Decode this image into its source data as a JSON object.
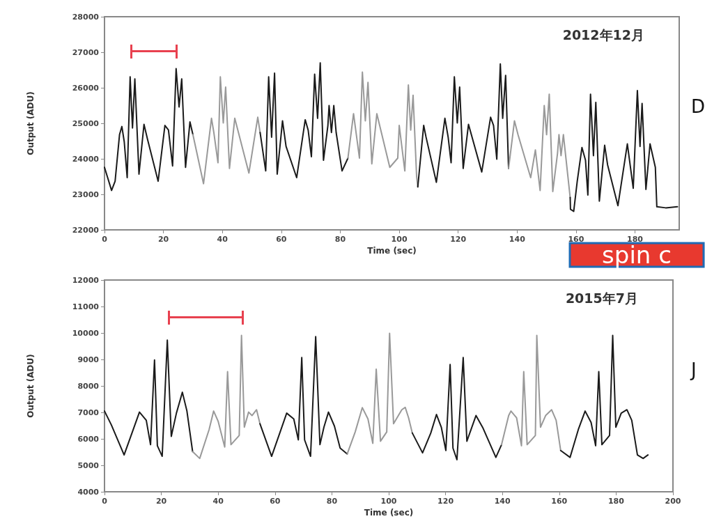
{
  "chart_data": [
    {
      "type": "line",
      "xlabel": "Time (sec)",
      "ylabel": "Output (ADU)",
      "xlim": [
        0,
        195
      ],
      "xticks": [
        0,
        20,
        40,
        60,
        80,
        100,
        120,
        140,
        160,
        180
      ],
      "ylim": [
        22000,
        28000
      ],
      "yticks": [
        22000,
        23000,
        24000,
        25000,
        26000,
        27000,
        28000
      ],
      "grid": false,
      "annotations": [
        "2012年12月",
        "D",
        "spin c"
      ],
      "series": [
        {
          "color": "#1a1a1a",
          "x": [
            0,
            2.4,
            3.6,
            5.1,
            5.9,
            6.7,
            7.7,
            8.7,
            9.5,
            10.3,
            11.7,
            13.4,
            14.6,
            18.2,
            20.5,
            21.7,
            23.1,
            24.3,
            25.3,
            26.2,
            27.5,
            29.0,
            30.0
          ],
          "values": [
            23760,
            23110,
            23370,
            24680,
            24910,
            24480,
            23470,
            26310,
            24870,
            26250,
            23570,
            24970,
            24550,
            23370,
            24940,
            24810,
            23800,
            26540,
            25460,
            26250,
            23760,
            25040,
            24680
          ]
        },
        {
          "color": "#999999",
          "x": [
            30.0,
            33.6,
            36.3,
            37.1,
            38.5,
            39.3,
            40.3,
            41.1,
            42.4,
            44.2,
            49.0,
            52.0,
            52.8
          ],
          "values": [
            24680,
            23300,
            25140,
            24740,
            23890,
            26310,
            25010,
            26020,
            23730,
            25140,
            23600,
            25170,
            24740
          ]
        },
        {
          "color": "#1a1a1a",
          "x": [
            52.8,
            54.7,
            55.7,
            56.7,
            57.7,
            58.6,
            60.4,
            61.6,
            65.2,
            68.1,
            69.1,
            70.2,
            71.3,
            72.3,
            73.2,
            74.3,
            75.8,
            76.2,
            77.0,
            77.8,
            78.6,
            80.6,
            82.6
          ],
          "values": [
            24740,
            23660,
            26310,
            24610,
            26410,
            23570,
            25070,
            24350,
            23470,
            25100,
            24810,
            24060,
            26380,
            25140,
            26700,
            23960,
            24940,
            25500,
            24740,
            25500,
            24740,
            23660,
            24020
          ]
        },
        {
          "color": "#999999",
          "x": [
            82.6,
            84.5,
            86.5,
            87.5,
            88.5,
            89.4,
            90.7,
            92.4,
            96.8,
            99.5,
            100.0,
            101.9,
            103.1,
            103.9,
            104.7,
            105.9,
            106.3
          ],
          "values": [
            24020,
            25270,
            24020,
            26440,
            25070,
            26150,
            23860,
            25270,
            23760,
            24020,
            24940,
            23660,
            26080,
            24810,
            25790,
            23500,
            23210
          ]
        },
        {
          "color": "#1a1a1a",
          "x": [
            106.3,
            108.3,
            109.1,
            112.6,
            115.5,
            116.6,
            117.6,
            118.7,
            119.7,
            120.5,
            121.7,
            123.5,
            128.0,
            131.0,
            132.0,
            133.1,
            134.3,
            135.1,
            136.1,
            137.1
          ],
          "values": [
            23210,
            24940,
            24610,
            23340,
            25140,
            24610,
            23890,
            26310,
            25010,
            26020,
            23730,
            24970,
            23630,
            25170,
            24940,
            23990,
            26670,
            25140,
            26350,
            23730
          ]
        },
        {
          "color": "#999999",
          "x": [
            137.1,
            139.1,
            140.3,
            144.6,
            146.2,
            147.8,
            149.2,
            150.0,
            150.9,
            152.1,
            153.7,
            154.2,
            154.9,
            155.7,
            158.0
          ],
          "values": [
            23730,
            25070,
            24680,
            23470,
            24250,
            23110,
            25500,
            24680,
            25820,
            23080,
            24150,
            24680,
            24090,
            24680,
            22910
          ]
        },
        {
          "color": "#1a1a1a",
          "x": [
            158.0,
            158.1,
            159.2,
            160.4,
            162.0,
            163.2,
            164.0,
            164.9,
            165.9,
            166.7,
            167.9,
            169.7,
            170.7,
            174.2,
            177.4,
            179.4,
            180.8,
            181.7,
            182.4,
            183.7,
            185.1,
            186.9,
            187.4,
            190.4,
            194.4
          ],
          "values": [
            22910,
            22580,
            22520,
            23370,
            24320,
            23960,
            22980,
            25820,
            24090,
            25590,
            22810,
            24380,
            23830,
            22680,
            24420,
            23170,
            25920,
            24350,
            25560,
            23140,
            24420,
            23760,
            22650,
            22620,
            22650
          ]
        }
      ]
    },
    {
      "type": "line",
      "xlabel": "Time (sec)",
      "ylabel": "Output (ADU)",
      "xlim": [
        0,
        200
      ],
      "xticks": [
        0,
        20,
        40,
        60,
        80,
        100,
        120,
        140,
        160,
        180,
        200
      ],
      "ylim": [
        4000,
        12000
      ],
      "yticks": [
        4000,
        5000,
        6000,
        7000,
        8000,
        9000,
        10000,
        11000,
        12000
      ],
      "grid": false,
      "annotations": [
        "2015年7月",
        "J"
      ],
      "series": [
        {
          "color": "#1a1a1a",
          "x": [
            0,
            2.4,
            6.9,
            9.8,
            12.3,
            14.7,
            16.2,
            17.6,
            18.6,
            20.3,
            22.1,
            23.5,
            25.3,
            27.4,
            29.0,
            31.0
          ],
          "values": [
            7050,
            6530,
            5390,
            6260,
            7010,
            6700,
            5780,
            8980,
            5740,
            5340,
            9730,
            6090,
            6970,
            7760,
            7050,
            5520
          ]
        },
        {
          "color": "#999999",
          "x": [
            31.0,
            33.5,
            36.8,
            38.4,
            40.0,
            42.3,
            43.3,
            44.5,
            47.4,
            48.2,
            49.2,
            50.7,
            51.9,
            53.5,
            54.7
          ],
          "values": [
            5520,
            5260,
            6350,
            7050,
            6660,
            5690,
            8540,
            5780,
            6130,
            9910,
            6440,
            7010,
            6880,
            7100,
            6570
          ]
        },
        {
          "color": "#1a1a1a",
          "x": [
            54.7,
            58.8,
            62.1,
            64.1,
            66.6,
            68.2,
            69.4,
            70.4,
            72.5,
            74.3,
            75.8,
            77.2,
            78.8,
            80.9,
            82.9,
            85.4
          ],
          "values": [
            6570,
            5340,
            6350,
            6970,
            6750,
            5960,
            9070,
            5960,
            5340,
            9860,
            5780,
            6440,
            7010,
            6480,
            5650,
            5430
          ]
        },
        {
          "color": "#999999",
          "x": [
            85.4,
            88.2,
            90.7,
            92.7,
            94.4,
            95.6,
            97.1,
            99.3,
            100.3,
            101.7,
            103.4,
            104.6,
            105.8,
            107.0,
            108.3
          ],
          "values": [
            5430,
            6260,
            7180,
            6750,
            5830,
            8630,
            5910,
            6260,
            9990,
            6570,
            6880,
            7100,
            7190,
            6790,
            6220
          ]
        },
        {
          "color": "#1a1a1a",
          "x": [
            108.3,
            111.9,
            114.8,
            116.8,
            118.5,
            120.1,
            121.6,
            122.6,
            124.0,
            126.2,
            127.5,
            130.7,
            133.2,
            137.7,
            139.7
          ],
          "values": [
            6220,
            5470,
            6220,
            6920,
            6440,
            5560,
            8810,
            5650,
            5210,
            9070,
            5910,
            6880,
            6400,
            5300,
            5780
          ]
        },
        {
          "color": "#999999",
          "x": [
            139.7,
            142.2,
            143.0,
            145.0,
            146.7,
            147.5,
            148.7,
            151.6,
            152.1,
            153.4,
            155.2,
            157.3,
            158.9,
            160.5
          ],
          "values": [
            5780,
            6880,
            7050,
            6790,
            5740,
            8540,
            5780,
            6130,
            9910,
            6440,
            6880,
            7100,
            6700,
            5560
          ]
        },
        {
          "color": "#1a1a1a",
          "x": [
            160.5,
            163.8,
            166.7,
            169.1,
            171.2,
            172.8,
            173.9,
            175.0,
            177.7,
            178.8,
            179.9,
            181.8,
            183.8,
            185.5,
            187.5,
            189.5,
            191.2
          ],
          "values": [
            5560,
            5300,
            6350,
            7050,
            6620,
            5740,
            8540,
            5780,
            6130,
            9910,
            6440,
            6970,
            7100,
            6700,
            5390,
            5260,
            5390
          ]
        }
      ]
    }
  ]
}
